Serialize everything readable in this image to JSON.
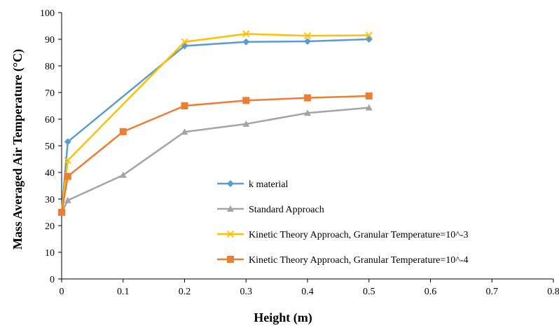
{
  "chart_data": {
    "type": "line",
    "title": "",
    "xlabel": "Height (m)",
    "ylabel": "Mass Averaged Air Temperature (°C)",
    "xlim": [
      0,
      0.8
    ],
    "ylim": [
      0,
      100
    ],
    "x_ticks": [
      "0",
      "0.1",
      "0.2",
      "0.3",
      "0.4",
      "0.5",
      "0.6",
      "0.7",
      "0.8"
    ],
    "y_ticks": [
      "0",
      "10",
      "20",
      "30",
      "40",
      "50",
      "60",
      "70",
      "80",
      "90",
      "100"
    ],
    "grid": false,
    "legend_position": "inside-right",
    "series": [
      {
        "name": "k material",
        "color": "#5b9bd5",
        "marker": "diamond",
        "x": [
          0,
          0.01,
          0.2,
          0.3,
          0.4,
          0.5
        ],
        "y": [
          25,
          51.5,
          87.5,
          89,
          89.2,
          90
        ]
      },
      {
        "name": "Standard Approach",
        "color": "#a5a5a5",
        "marker": "triangle",
        "x": [
          0,
          0.01,
          0.1,
          0.2,
          0.3,
          0.4,
          0.5
        ],
        "y": [
          25,
          29.5,
          39,
          55.2,
          58.2,
          62.3,
          64.3
        ]
      },
      {
        "name": "Kinetic Theory Approach, Granular Temperature=10^-3",
        "color": "#ffc000",
        "marker": "x",
        "x": [
          0,
          0.01,
          0.2,
          0.3,
          0.4,
          0.5
        ],
        "y": [
          25,
          44.5,
          89,
          92,
          91.3,
          91.5
        ]
      },
      {
        "name": "Kinetic Theory Approach, Granular Temperature=10^-4",
        "color": "#ed7d31",
        "marker": "square",
        "x": [
          0,
          0.01,
          0.1,
          0.2,
          0.3,
          0.4,
          0.5
        ],
        "y": [
          25,
          38.5,
          55.3,
          65,
          67,
          68,
          68.7
        ]
      }
    ]
  }
}
